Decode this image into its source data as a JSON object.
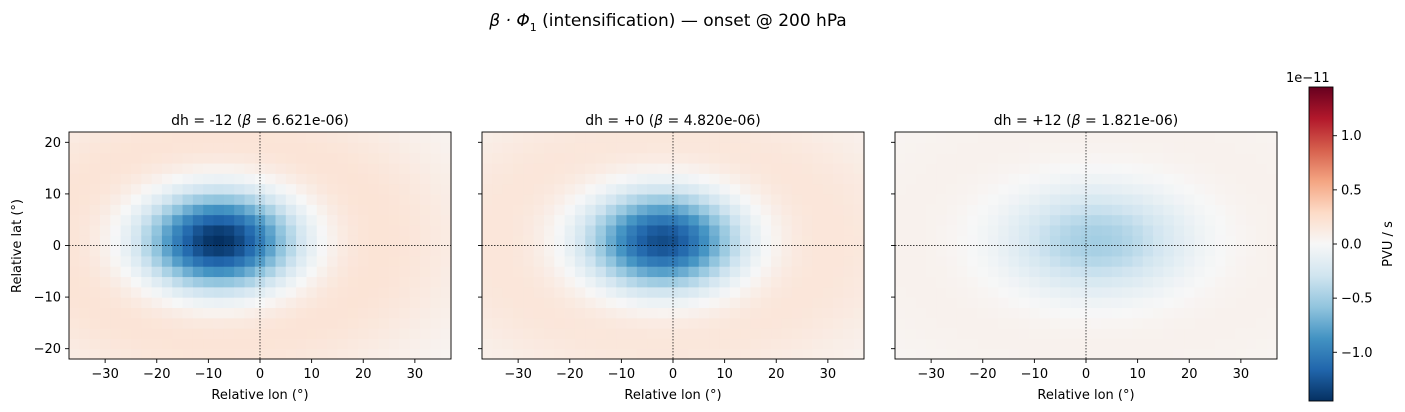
{
  "figure": {
    "suptitle_prefix": "β · Φ",
    "suptitle_sub": "1",
    "suptitle_suffix": "  (intensification)  —  onset @ 200 hPa"
  },
  "chart_data": [
    {
      "type": "heatmap",
      "title_dh": "dh = -12   (",
      "title_beta": "β",
      "title_rest": " = 6.621e-06)",
      "xlabel": "Relative lon (°)",
      "ylabel": "Relative lat (°)",
      "xlim": [
        -37,
        37
      ],
      "ylim": [
        -22,
        22
      ],
      "xticks": [
        -30,
        -20,
        -10,
        0,
        10,
        20,
        30
      ],
      "yticks": [
        -20,
        -10,
        0,
        10,
        20
      ],
      "field": {
        "center_lon": -8,
        "center_lat": 1,
        "sigma_lon": 10,
        "sigma_lat": 6.5,
        "peak": -1.45e-11,
        "ring": 3.2e-12,
        "ring_sigma_lon": 21,
        "ring_sigma_lat": 13
      }
    },
    {
      "type": "heatmap",
      "title_dh": "dh = +0   (",
      "title_beta": "β",
      "title_rest": " = 4.820e-06)",
      "xlabel": "Relative lon (°)",
      "ylabel": "",
      "xlim": [
        -37,
        37
      ],
      "ylim": [
        -22,
        22
      ],
      "xticks": [
        -30,
        -20,
        -10,
        0,
        10,
        20,
        30
      ],
      "yticks": [
        -20,
        -10,
        0,
        10,
        20
      ],
      "field": {
        "center_lon": -2,
        "center_lat": 1,
        "sigma_lon": 10,
        "sigma_lat": 6.5,
        "peak": -1.3e-11,
        "ring": 2.8e-12,
        "ring_sigma_lon": 22,
        "ring_sigma_lat": 13
      }
    },
    {
      "type": "heatmap",
      "title_dh": "dh = +12   (",
      "title_beta": "β",
      "title_rest": " = 1.821e-06)",
      "xlabel": "Relative lon (°)",
      "ylabel": "",
      "xlim": [
        -37,
        37
      ],
      "ylim": [
        -22,
        22
      ],
      "xticks": [
        -30,
        -20,
        -10,
        0,
        10,
        20,
        30
      ],
      "yticks": [
        -20,
        -10,
        0,
        10,
        20
      ],
      "field": {
        "center_lon": 2,
        "center_lat": 1,
        "sigma_lon": 12,
        "sigma_lat": 7,
        "peak": -5e-12,
        "ring": 1e-12,
        "ring_sigma_lon": 24,
        "ring_sigma_lat": 14
      }
    }
  ],
  "colorbar": {
    "label": "PVU / s",
    "scale_label": "1e−11",
    "vmin": -1.45,
    "vmax": 1.45,
    "ticks": [
      1.0,
      0.5,
      0.0,
      -0.5,
      -1.0
    ],
    "tick_labels": [
      "1.0",
      "0.5",
      "0.0",
      "−0.5",
      "−1.0"
    ],
    "colormap": "RdBu_r",
    "colors": [
      "#053061",
      "#2166ac",
      "#4393c3",
      "#92c5de",
      "#d1e5f0",
      "#f7f7f7",
      "#fddbc7",
      "#f4a582",
      "#d6604d",
      "#b2182b",
      "#67001f"
    ]
  }
}
